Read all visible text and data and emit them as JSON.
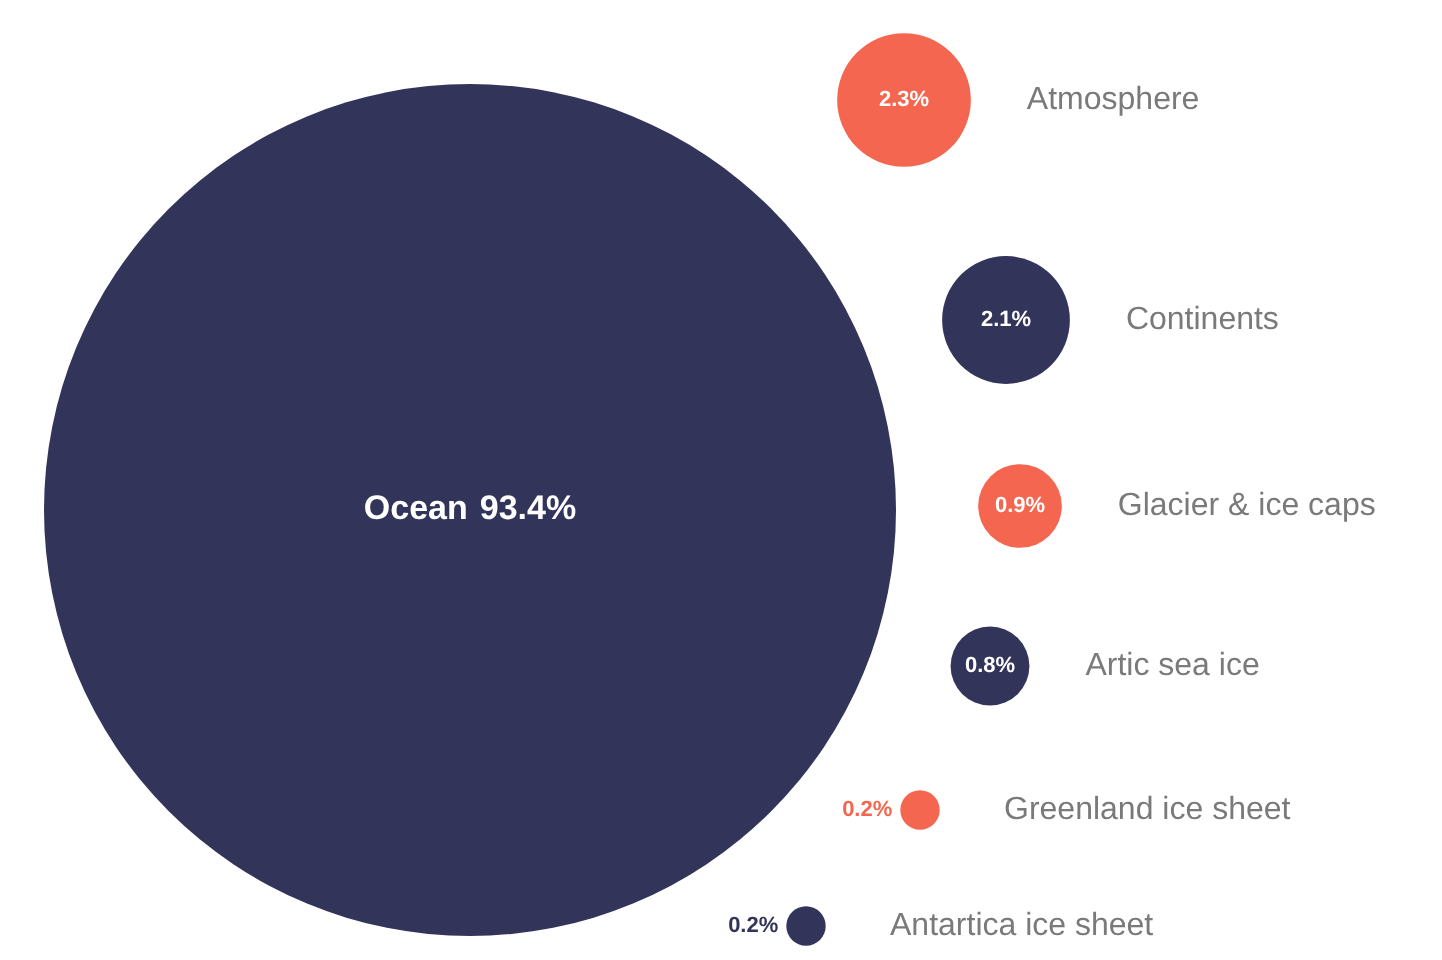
{
  "chart_data": {
    "type": "other",
    "categories": [
      "Ocean",
      "Atmosphere",
      "Continents",
      "Glacier & ice caps",
      "Artic sea ice",
      "Greenland ice sheet",
      "Antartica ice sheet"
    ],
    "values": [
      93.4,
      2.3,
      2.1,
      0.9,
      0.8,
      0.2,
      0.2
    ],
    "value_labels": [
      "93.4%",
      "2.3%",
      "2.1%",
      "0.9%",
      "0.8%",
      "0.2%",
      "0.2%"
    ],
    "colors": [
      "#33345a",
      "#f4664f",
      "#33345a",
      "#f4664f",
      "#33345a",
      "#f4664f",
      "#33345a"
    ],
    "legend": false
  }
}
